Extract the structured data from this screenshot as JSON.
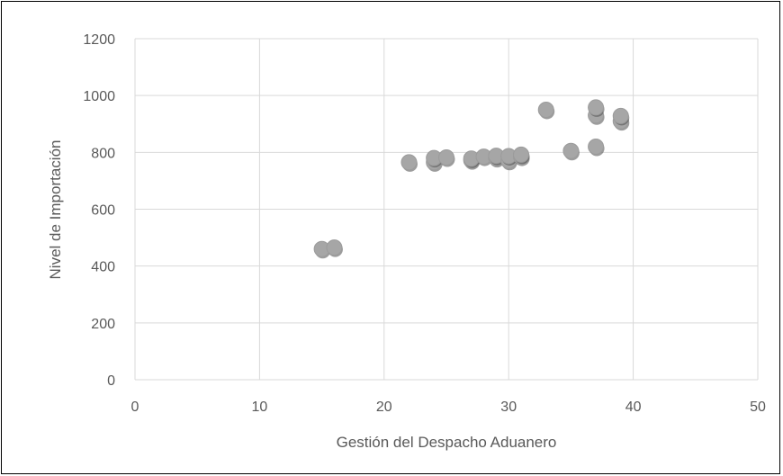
{
  "chart_data": {
    "type": "scatter",
    "title": "",
    "xlabel": "Gestión del Despacho Aduanero",
    "ylabel": "Nivel de Importación",
    "xlim": [
      0,
      50
    ],
    "ylim": [
      0,
      1200
    ],
    "xticks": [
      0,
      10,
      20,
      30,
      40,
      50
    ],
    "yticks": [
      0,
      200,
      400,
      600,
      800,
      1000,
      1200
    ],
    "grid": true,
    "legend": "none",
    "marker_color": "#a6a6a6",
    "points": [
      {
        "x": 15,
        "y": 460
      },
      {
        "x": 16,
        "y": 465
      },
      {
        "x": 22,
        "y": 765
      },
      {
        "x": 24,
        "y": 765
      },
      {
        "x": 24,
        "y": 780
      },
      {
        "x": 25,
        "y": 782
      },
      {
        "x": 27,
        "y": 772
      },
      {
        "x": 27,
        "y": 778
      },
      {
        "x": 28,
        "y": 785
      },
      {
        "x": 29,
        "y": 780
      },
      {
        "x": 29,
        "y": 788
      },
      {
        "x": 30,
        "y": 770
      },
      {
        "x": 30,
        "y": 787
      },
      {
        "x": 31,
        "y": 785
      },
      {
        "x": 31,
        "y": 792
      },
      {
        "x": 33,
        "y": 950
      },
      {
        "x": 35,
        "y": 805
      },
      {
        "x": 37,
        "y": 820
      },
      {
        "x": 37,
        "y": 930
      },
      {
        "x": 37,
        "y": 958
      },
      {
        "x": 39,
        "y": 910
      },
      {
        "x": 39,
        "y": 928
      }
    ]
  }
}
